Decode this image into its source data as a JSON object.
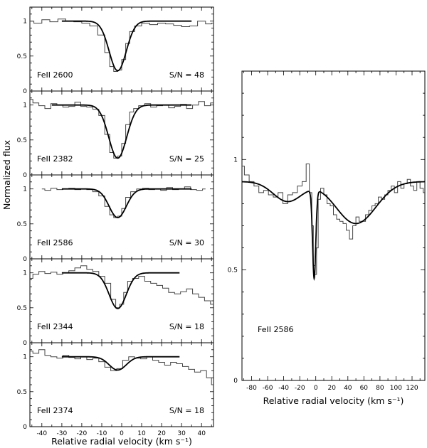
{
  "chart_data": [
    {
      "type": "line",
      "xlabel": "Relative radial velocity (km s⁻¹)",
      "ylabel": "Normalized flux",
      "xlim": [
        -46,
        46
      ],
      "x_ticks": [
        -40,
        -30,
        -20,
        -10,
        0,
        10,
        20,
        30,
        40
      ],
      "panels": [
        {
          "label": "FeII 2600",
          "snr": "S/N = 48",
          "ylim": [
            0,
            1.2
          ],
          "y_ticks": [
            0,
            0.5,
            1
          ],
          "y_tick_labels": [
            "0",
            "0.5",
            "1"
          ],
          "model": {
            "center": -2,
            "depth": 0.71,
            "sigma": 4.3,
            "x_range": [
              -30,
              35
            ]
          },
          "spectrum": {
            "x": [
              -46,
              -42,
              -38,
              -34,
              -30,
              -26,
              -22,
              -18,
              -14,
              -10,
              -7,
              -5,
              -3,
              -1,
              1,
              3,
              5,
              8,
              12,
              16,
              20,
              24,
              28,
              32,
              36,
              40,
              44,
              46
            ],
            "y": [
              1.0,
              0.97,
              1.02,
              0.99,
              1.03,
              1.0,
              0.99,
              0.97,
              0.93,
              0.8,
              0.55,
              0.35,
              0.28,
              0.3,
              0.45,
              0.68,
              0.85,
              0.93,
              0.97,
              0.95,
              0.97,
              0.96,
              0.94,
              0.92,
              0.93,
              1.0,
              0.96,
              0.97
            ]
          }
        },
        {
          "label": "FeII 2382",
          "snr": "S/N = 25",
          "ylim": [
            0,
            1.2
          ],
          "y_ticks": [
            0,
            0.5,
            1
          ],
          "y_tick_labels": [
            "0",
            "0.5",
            "1"
          ],
          "model": {
            "center": -2,
            "depth": 0.76,
            "sigma": 4.5,
            "x_range": [
              -35,
              35
            ]
          },
          "spectrum": {
            "x": [
              -46,
              -43,
              -40,
              -37,
              -34,
              -31,
              -28,
              -25,
              -22,
              -19,
              -16,
              -13,
              -10,
              -7,
              -5,
              -3,
              -1,
              1,
              3,
              5,
              7,
              10,
              13,
              16,
              19,
              22,
              25,
              28,
              31,
              34,
              37,
              40,
              43,
              46
            ],
            "y": [
              1.08,
              1.03,
              0.99,
              0.95,
              1.02,
              1.0,
              0.97,
              0.98,
              1.04,
              0.98,
              0.97,
              0.94,
              0.85,
              0.58,
              0.32,
              0.24,
              0.27,
              0.45,
              0.72,
              0.9,
              0.95,
              0.99,
              1.02,
              0.97,
              0.99,
              1.0,
              0.96,
              0.98,
              1.01,
              0.95,
              1.0,
              1.05,
              0.99,
              1.03
            ]
          }
        },
        {
          "label": "FeII 2586",
          "snr": "S/N = 30",
          "ylim": [
            0,
            1.2
          ],
          "y_ticks": [
            0,
            0.5,
            1
          ],
          "y_tick_labels": [
            "0",
            "0.5",
            "1"
          ],
          "model": {
            "center": -2,
            "depth": 0.41,
            "sigma": 4.3,
            "x_range": [
              -30,
              35
            ]
          },
          "spectrum": {
            "x": [
              -40,
              -37,
              -34,
              -31,
              -28,
              -25,
              -22,
              -19,
              -16,
              -13,
              -10,
              -7,
              -5,
              -3,
              -1,
              1,
              3,
              6,
              9,
              12,
              15,
              18,
              21,
              24,
              27,
              30,
              33,
              36,
              39,
              42
            ],
            "y": [
              1.0,
              0.98,
              1.01,
              0.99,
              1.0,
              1.01,
              0.99,
              1.0,
              0.99,
              0.96,
              0.9,
              0.75,
              0.63,
              0.59,
              0.61,
              0.72,
              0.88,
              0.96,
              1.0,
              1.01,
              0.99,
              1.0,
              0.98,
              1.02,
              0.99,
              1.0,
              1.03,
              0.99,
              0.98,
              1.0
            ]
          }
        },
        {
          "label": "FeII 2344",
          "snr": "S/N = 18",
          "ylim": [
            0,
            1.2
          ],
          "y_ticks": [
            0,
            0.5,
            1
          ],
          "y_tick_labels": [
            "0",
            "0.5",
            "1"
          ],
          "model": {
            "center": -2,
            "depth": 0.51,
            "sigma": 4.3,
            "x_range": [
              -30,
              29
            ]
          },
          "spectrum": {
            "x": [
              -46,
              -43,
              -40,
              -37,
              -34,
              -31,
              -28,
              -25,
              -22,
              -19,
              -16,
              -13,
              -10,
              -7,
              -4,
              -2,
              0,
              2,
              4,
              7,
              10,
              13,
              16,
              19,
              22,
              25,
              28,
              31,
              34,
              37,
              40,
              43,
              46
            ],
            "y": [
              0.92,
              0.98,
              1.02,
              0.99,
              1.01,
              0.98,
              1.0,
              1.03,
              1.07,
              1.1,
              1.05,
              1.02,
              0.95,
              0.85,
              0.62,
              0.5,
              0.55,
              0.72,
              0.88,
              0.92,
              0.95,
              0.88,
              0.85,
              0.82,
              0.78,
              0.72,
              0.7,
              0.73,
              0.77,
              0.7,
              0.65,
              0.6,
              0.55
            ]
          }
        },
        {
          "label": "FeII 2374",
          "snr": "S/N = 18",
          "ylim": [
            0,
            1.2
          ],
          "y_ticks": [
            0,
            0.5,
            1
          ],
          "y_tick_labels": [
            "0",
            "0.5",
            "1"
          ],
          "model": {
            "center": -2,
            "depth": 0.19,
            "sigma": 4.3,
            "x_range": [
              -30,
              29
            ]
          },
          "spectrum": {
            "x": [
              -46,
              -43,
              -40,
              -37,
              -34,
              -31,
              -28,
              -25,
              -22,
              -19,
              -16,
              -13,
              -10,
              -7,
              -4,
              -1,
              2,
              5,
              8,
              11,
              14,
              17,
              20,
              23,
              26,
              29,
              32,
              35,
              38,
              41,
              44,
              46
            ],
            "y": [
              1.08,
              1.05,
              1.1,
              1.02,
              1.0,
              0.98,
              1.02,
              0.99,
              0.97,
              1.0,
              0.96,
              0.98,
              0.93,
              0.85,
              0.8,
              0.83,
              0.95,
              1.0,
              0.98,
              0.97,
              1.0,
              0.95,
              0.92,
              0.88,
              0.92,
              0.9,
              0.86,
              0.82,
              0.78,
              0.8,
              0.7,
              0.6
            ]
          }
        }
      ]
    },
    {
      "type": "line",
      "label": "FeII 2586",
      "xlabel": "Relative radial velocity (km s⁻¹)",
      "xlim": [
        -92,
        136
      ],
      "x_ticks": [
        -80,
        -60,
        -40,
        -20,
        0,
        20,
        40,
        60,
        80,
        100,
        120
      ],
      "ylim": [
        0,
        1.4
      ],
      "y_ticks": [
        0,
        0.5,
        1
      ],
      "y_tick_labels": [
        "0",
        "0.5",
        "1"
      ],
      "model": {
        "baseline": 0.9,
        "components": [
          {
            "center": -35,
            "depth": 0.09,
            "sigma": 18
          },
          {
            "center": 50,
            "depth": 0.19,
            "sigma": 25
          },
          {
            "center": -2,
            "depth": 0.4,
            "sigma": 2
          }
        ]
      },
      "spectrum": {
        "x": [
          -92,
          -86,
          -80,
          -74,
          -68,
          -62,
          -56,
          -50,
          -44,
          -38,
          -32,
          -26,
          -20,
          -14,
          -10,
          -6,
          -4,
          -2,
          0,
          2,
          4,
          8,
          12,
          16,
          20,
          24,
          28,
          32,
          36,
          40,
          44,
          48,
          52,
          56,
          60,
          64,
          68,
          72,
          76,
          80,
          84,
          88,
          92,
          96,
          100,
          104,
          108,
          112,
          116,
          120,
          124,
          128,
          132,
          136
        ],
        "y": [
          0.97,
          0.93,
          0.9,
          0.88,
          0.85,
          0.86,
          0.84,
          0.83,
          0.85,
          0.8,
          0.84,
          0.85,
          0.88,
          0.9,
          0.98,
          0.85,
          0.7,
          0.52,
          0.48,
          0.6,
          0.82,
          0.87,
          0.84,
          0.8,
          0.79,
          0.75,
          0.73,
          0.72,
          0.71,
          0.68,
          0.64,
          0.7,
          0.74,
          0.72,
          0.72,
          0.75,
          0.77,
          0.79,
          0.8,
          0.83,
          0.82,
          0.84,
          0.86,
          0.88,
          0.85,
          0.9,
          0.87,
          0.89,
          0.91,
          0.88,
          0.86,
          0.9,
          0.87,
          0.85
        ]
      }
    }
  ]
}
